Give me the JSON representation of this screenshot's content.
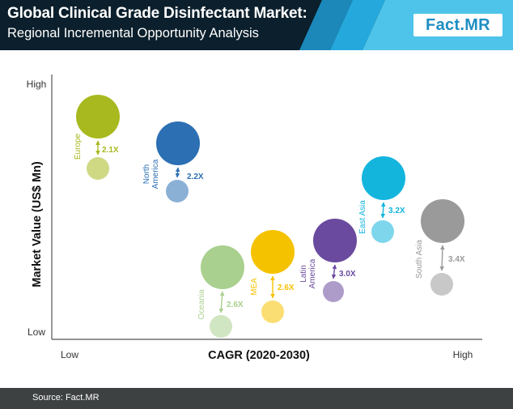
{
  "header": {
    "title": "Global Clinical Grade Disinfectant Market:",
    "subtitle": "Regional Incremental Opportunity Analysis",
    "logo": "Fact.MR",
    "colors": {
      "background": "#0b1f2c",
      "accent": "#1d8ec2"
    }
  },
  "footer": {
    "source": "Source: Fact.MR"
  },
  "chart_data": {
    "type": "scatter",
    "title": "Global Clinical Grade Disinfectant Market:",
    "subtitle": "Regional Incremental Opportunity Analysis",
    "xlabel": "CAGR (2020-2030)",
    "ylabel": "Market Value (US$ Mn)",
    "x_ticks": [
      "Low",
      "High"
    ],
    "y_ticks": [
      "Low",
      "High"
    ],
    "grid": false,
    "legend": "none",
    "series": [
      {
        "name": "Europe",
        "multiplier": "2.1X",
        "color": "#a8b91f"
      },
      {
        "name": "North America",
        "multiplier": "2.2X",
        "color": "#2c6fb3"
      },
      {
        "name": "Oceania",
        "multiplier": "2.6X",
        "color": "#a9d08e"
      },
      {
        "name": "MEA",
        "multiplier": "2.6X",
        "color": "#f5c200"
      },
      {
        "name": "Latin America",
        "multiplier": "3.0X",
        "color": "#6a4a9e"
      },
      {
        "name": "East Asia",
        "multiplier": "3.2X",
        "color": "#13b5dd"
      },
      {
        "name": "South Asia",
        "multiplier": "3.4X",
        "color": "#9a9a9a"
      }
    ]
  }
}
